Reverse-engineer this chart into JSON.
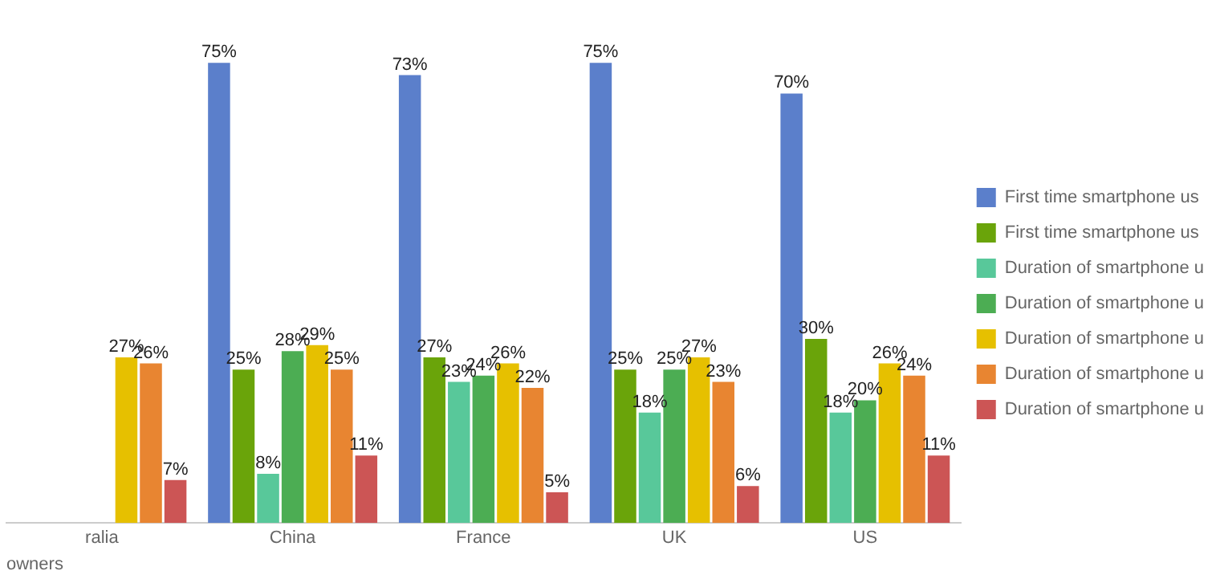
{
  "chart_data": {
    "type": "bar",
    "categories": [
      "ralia",
      "China",
      "France",
      "UK",
      "US"
    ],
    "series": [
      {
        "name": "First time smartphone us",
        "color": "#5b7fcb",
        "values": [
          null,
          75,
          73,
          75,
          70
        ],
        "value_labels": [
          null,
          "75%",
          "73%",
          "75%",
          "70%"
        ]
      },
      {
        "name": "First time smartphone us",
        "color": "#6aa40a",
        "values": [
          null,
          25,
          27,
          25,
          30
        ],
        "value_labels": [
          null,
          "25%",
          "27%",
          "25%",
          "30%"
        ]
      },
      {
        "name": "Duration of smartphone u",
        "color": "#58c89a",
        "values": [
          null,
          8,
          23,
          18,
          18
        ],
        "value_labels": [
          null,
          "8%",
          "23%",
          "18%",
          "18%"
        ]
      },
      {
        "name": "Duration of smartphone u",
        "color": "#4cad53",
        "values": [
          null,
          28,
          24,
          25,
          20
        ],
        "value_labels": [
          null,
          "28%",
          "24%",
          "25%",
          "20%"
        ]
      },
      {
        "name": "Duration of smartphone u",
        "color": "#e6c000",
        "values": [
          27,
          29,
          26,
          27,
          26
        ],
        "value_labels": [
          "27%",
          "29%",
          "26%",
          "27%",
          "26%"
        ]
      },
      {
        "name": "Duration of smartphone u",
        "color": "#e88531",
        "values": [
          26,
          25,
          22,
          23,
          24
        ],
        "value_labels": [
          "26%",
          "25%",
          "22%",
          "23%",
          "24%"
        ]
      },
      {
        "name": "Duration of smartphone u",
        "color": "#cc5555",
        "values": [
          7,
          11,
          5,
          6,
          11
        ],
        "value_labels": [
          "7%",
          "11%",
          "5%",
          "6%",
          "11%"
        ]
      }
    ],
    "annotations": [
      "owners"
    ],
    "legend": "right",
    "grid": false
  }
}
